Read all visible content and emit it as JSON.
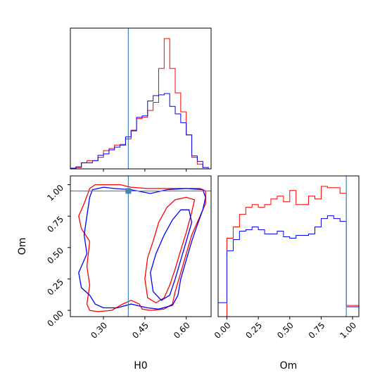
{
  "chart_data": [
    {
      "type": "step-histogram",
      "panel": "H0 marginal",
      "xlim": [
        0.18,
        0.69
      ],
      "truth": 0.39,
      "bin_edges": [
        0.18,
        0.2,
        0.22,
        0.24,
        0.26,
        0.28,
        0.3,
        0.32,
        0.34,
        0.36,
        0.38,
        0.4,
        0.42,
        0.44,
        0.46,
        0.48,
        0.5,
        0.52,
        0.54,
        0.56,
        0.58,
        0.6,
        0.62,
        0.64,
        0.66,
        0.68,
        0.69
      ],
      "series": [
        {
          "color": "#ff0000",
          "values": [
            1,
            2,
            9,
            12,
            12,
            17,
            27,
            30,
            35,
            36,
            44,
            57,
            74,
            76,
            86,
            98,
            148,
            192,
            148,
            112,
            84,
            50,
            17,
            7,
            2,
            0
          ]
        },
        {
          "color": "#0000ff",
          "values": [
            1,
            3,
            9,
            9,
            12,
            20,
            22,
            28,
            32,
            35,
            47,
            56,
            76,
            78,
            100,
            108,
            109,
            111,
            92,
            81,
            68,
            50,
            19,
            11,
            2,
            0
          ]
        }
      ]
    },
    {
      "type": "contour",
      "panel": "H0 vs Om",
      "xlabel": "H0",
      "ylabel": "Om",
      "xlim": [
        0.18,
        0.69
      ],
      "ylim": [
        -0.05,
        1.07
      ],
      "xticks": [
        "0.30",
        "0.45",
        "0.60"
      ],
      "yticks": [
        "0.00",
        "0.25",
        "0.50",
        "0.75",
        "1.00"
      ],
      "truth": {
        "H0": 0.39,
        "Om": 0.95
      },
      "series": [
        {
          "color": "#ff0000",
          "contours": [
            [
              [
                0.25,
                0.97
              ],
              [
                0.27,
                1.0
              ],
              [
                0.33,
                1.0
              ],
              [
                0.36,
                1.0
              ],
              [
                0.4,
                0.98
              ],
              [
                0.46,
                0.97
              ],
              [
                0.52,
                0.97
              ],
              [
                0.58,
                0.97
              ],
              [
                0.65,
                0.97
              ],
              [
                0.67,
                0.95
              ],
              [
                0.67,
                0.85
              ],
              [
                0.65,
                0.75
              ],
              [
                0.62,
                0.6
              ],
              [
                0.6,
                0.45
              ],
              [
                0.58,
                0.3
              ],
              [
                0.56,
                0.15
              ],
              [
                0.55,
                0.05
              ],
              [
                0.52,
                0.01
              ],
              [
                0.47,
                0.0
              ],
              [
                0.44,
                0.01
              ],
              [
                0.43,
                0.05
              ],
              [
                0.4,
                0.08
              ],
              [
                0.37,
                0.05
              ],
              [
                0.33,
                0.0
              ],
              [
                0.28,
                -0.01
              ],
              [
                0.25,
                0.0
              ],
              [
                0.24,
                0.05
              ],
              [
                0.25,
                0.2
              ],
              [
                0.24,
                0.35
              ],
              [
                0.25,
                0.55
              ],
              [
                0.22,
                0.65
              ],
              [
                0.21,
                0.75
              ],
              [
                0.23,
                0.85
              ],
              [
                0.25,
                0.97
              ]
            ],
            [
              [
                0.45,
                0.25
              ],
              [
                0.46,
                0.42
              ],
              [
                0.48,
                0.55
              ],
              [
                0.5,
                0.7
              ],
              [
                0.53,
                0.82
              ],
              [
                0.56,
                0.88
              ],
              [
                0.6,
                0.9
              ],
              [
                0.63,
                0.88
              ],
              [
                0.62,
                0.78
              ],
              [
                0.6,
                0.62
              ],
              [
                0.58,
                0.48
              ],
              [
                0.56,
                0.33
              ],
              [
                0.54,
                0.2
              ],
              [
                0.52,
                0.1
              ],
              [
                0.49,
                0.06
              ],
              [
                0.46,
                0.1
              ],
              [
                0.45,
                0.25
              ]
            ]
          ]
        },
        {
          "color": "#0000ff",
          "contours": [
            [
              [
                0.26,
                0.96
              ],
              [
                0.3,
                0.98
              ],
              [
                0.34,
                0.97
              ],
              [
                0.4,
                0.96
              ],
              [
                0.47,
                0.93
              ],
              [
                0.53,
                0.96
              ],
              [
                0.6,
                0.97
              ],
              [
                0.66,
                0.96
              ],
              [
                0.67,
                0.9
              ],
              [
                0.66,
                0.8
              ],
              [
                0.64,
                0.68
              ],
              [
                0.62,
                0.55
              ],
              [
                0.6,
                0.4
              ],
              [
                0.58,
                0.25
              ],
              [
                0.57,
                0.12
              ],
              [
                0.55,
                0.04
              ],
              [
                0.5,
                0.01
              ],
              [
                0.46,
                0.02
              ],
              [
                0.44,
                0.03
              ],
              [
                0.4,
                0.05
              ],
              [
                0.35,
                0.02
              ],
              [
                0.3,
                0.02
              ],
              [
                0.27,
                0.05
              ],
              [
                0.25,
                0.12
              ],
              [
                0.22,
                0.18
              ],
              [
                0.21,
                0.3
              ],
              [
                0.24,
                0.45
              ],
              [
                0.23,
                0.6
              ],
              [
                0.24,
                0.75
              ],
              [
                0.25,
                0.9
              ],
              [
                0.26,
                0.96
              ]
            ],
            [
              [
                0.48,
                0.15
              ],
              [
                0.47,
                0.3
              ],
              [
                0.49,
                0.45
              ],
              [
                0.52,
                0.6
              ],
              [
                0.55,
                0.72
              ],
              [
                0.58,
                0.8
              ],
              [
                0.61,
                0.8
              ],
              [
                0.62,
                0.7
              ],
              [
                0.6,
                0.55
              ],
              [
                0.58,
                0.4
              ],
              [
                0.56,
                0.25
              ],
              [
                0.54,
                0.12
              ],
              [
                0.51,
                0.08
              ],
              [
                0.48,
                0.15
              ]
            ]
          ]
        }
      ]
    },
    {
      "type": "step-histogram",
      "panel": "Om marginal",
      "xlabel": "Om",
      "xlim": [
        -0.07,
        1.05
      ],
      "xticks": [
        "0.00",
        "0.25",
        "0.50",
        "0.75",
        "1.00"
      ],
      "truth": 0.95,
      "bin_edges": [
        -0.07,
        0.0,
        0.05,
        0.1,
        0.15,
        0.2,
        0.25,
        0.3,
        0.35,
        0.4,
        0.45,
        0.5,
        0.55,
        0.6,
        0.65,
        0.7,
        0.75,
        0.8,
        0.85,
        0.9,
        0.95,
        1.0,
        1.05
      ],
      "series": [
        {
          "color": "#ff0000",
          "values": [
            0,
            56,
            64,
            73,
            78,
            80,
            78,
            80,
            84,
            86,
            82,
            90,
            80,
            80,
            86,
            84,
            93,
            92,
            92,
            88,
            8,
            8
          ]
        },
        {
          "color": "#0000ff",
          "values": [
            10,
            47,
            55,
            61,
            62,
            64,
            62,
            59,
            59,
            61,
            57,
            56,
            58,
            58,
            59,
            64,
            70,
            72,
            70,
            68,
            7,
            7
          ]
        }
      ]
    }
  ]
}
